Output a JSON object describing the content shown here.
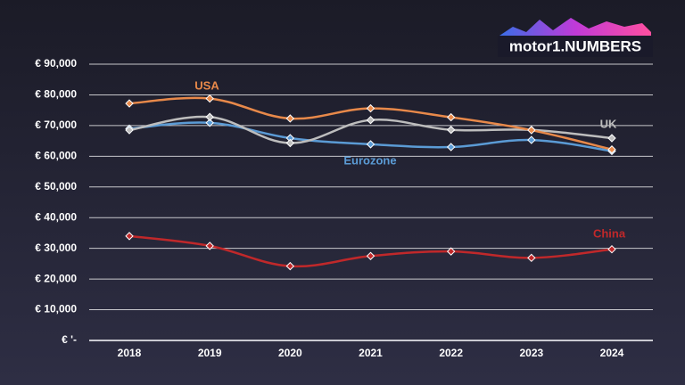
{
  "chart_data": {
    "type": "line",
    "logo": "motor1.NUMBERS",
    "x": [
      "2018",
      "2019",
      "2020",
      "2021",
      "2022",
      "2023",
      "2024"
    ],
    "series": [
      {
        "name": "USA",
        "color": "#e8894a",
        "values": [
          77200,
          78800,
          72300,
          75600,
          72700,
          68500,
          62200
        ]
      },
      {
        "name": "UK",
        "color": "#bdbdbd",
        "values": [
          68500,
          72800,
          64300,
          71800,
          68600,
          68600,
          65900
        ]
      },
      {
        "name": "Eurozone",
        "color": "#5b9bd5",
        "values": [
          69000,
          70900,
          65900,
          63900,
          63000,
          65300,
          61700
        ]
      },
      {
        "name": "China",
        "color": "#c0282a",
        "values": [
          34000,
          30800,
          24200,
          27500,
          29000,
          26900,
          29700
        ]
      }
    ],
    "ylim": [
      0,
      90000
    ],
    "yticks": [
      {
        "value": 0,
        "label": "€ '-"
      },
      {
        "value": 10000,
        "label": "€ 10,000"
      },
      {
        "value": 20000,
        "label": "€ 20,000"
      },
      {
        "value": 30000,
        "label": "€ 30,000"
      },
      {
        "value": 40000,
        "label": "€ 40,000"
      },
      {
        "value": 50000,
        "label": "€ 50,000"
      },
      {
        "value": 60000,
        "label": "€ 60,000"
      },
      {
        "value": 70000,
        "label": "€ 70,000"
      },
      {
        "value": 80000,
        "label": "€ 80,000"
      },
      {
        "value": 90000,
        "label": "€ 90,000"
      }
    ],
    "grid": true
  }
}
